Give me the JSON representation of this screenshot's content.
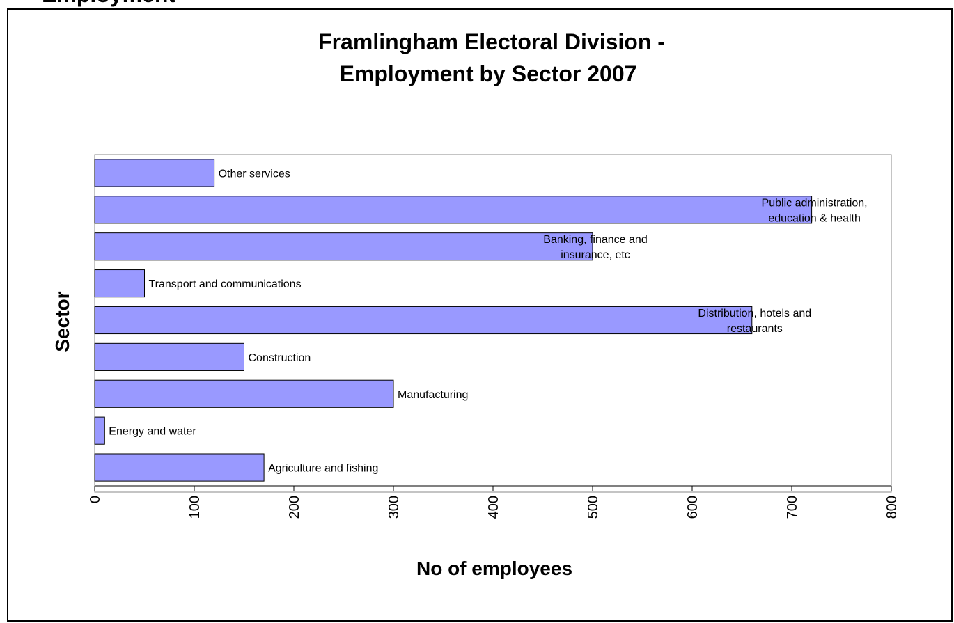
{
  "page": {
    "clipped_heading": "Employment"
  },
  "chart_data": {
    "type": "bar",
    "orientation": "horizontal",
    "title_line1": "Framlingham Electoral Division -",
    "title_line2": "Employment by Sector 2007",
    "xlabel": "No of employees",
    "ylabel": "Sector",
    "xlim": [
      0,
      800
    ],
    "xticks": [
      0,
      100,
      200,
      300,
      400,
      500,
      600,
      700,
      800
    ],
    "grid": false,
    "legend": "none",
    "bar_color": "#9999ff",
    "bar_border_color": "#000000",
    "categories": [
      {
        "label": "Agriculture and fishing",
        "lines": [
          "Agriculture and fishing"
        ],
        "value": 170
      },
      {
        "label": "Energy and water",
        "lines": [
          "Energy and water"
        ],
        "value": 10
      },
      {
        "label": "Manufacturing",
        "lines": [
          "Manufacturing"
        ],
        "value": 300
      },
      {
        "label": "Construction",
        "lines": [
          "Construction"
        ],
        "value": 150
      },
      {
        "label": "Distribution, hotels and restaurants",
        "lines": [
          "Distribution, hotels and",
          "restaurants"
        ],
        "value": 660
      },
      {
        "label": "Transport and communications",
        "lines": [
          "Transport and communications"
        ],
        "value": 50
      },
      {
        "label": "Banking, finance and insurance, etc",
        "lines": [
          "Banking, finance and",
          "insurance, etc"
        ],
        "value": 500
      },
      {
        "label": "Public administration, education & health",
        "lines": [
          "Public administration,",
          "education & health"
        ],
        "value": 720
      },
      {
        "label": "Other services",
        "lines": [
          "Other services"
        ],
        "value": 120
      }
    ]
  }
}
